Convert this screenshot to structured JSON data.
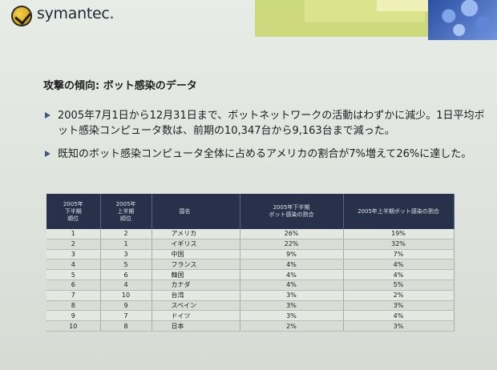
{
  "header": {
    "brand": "symantec."
  },
  "title": "攻撃の傾向:  ボット感染のデータ",
  "bullets": [
    "2005年7月1日から12月31日まで、ボットネットワークの活動はわずかに減少。1日平均ボット感染コンピュータ数は、前期の10,347台から9,163台まで減った。",
    "既知のボット感染コンピュータ全体に占めるアメリカの割合が7%増えて26%に達した。"
  ],
  "table": {
    "headers": {
      "rank_h2_line1": "2005年",
      "rank_h2_line2": "下半期",
      "rank_h2_line3": "順位",
      "rank_h1_line1": "2005年",
      "rank_h1_line2": "上半期",
      "rank_h1_line3": "順位",
      "country": "国名",
      "share_h2_line1": "2005年下半期",
      "share_h2_line2": "ボット感染の割合",
      "share_h1": "2005年上半期ボット感染の割合"
    },
    "rows": [
      {
        "rank_h2": "1",
        "rank_h1": "2",
        "country": "アメリカ",
        "share_h2": "26%",
        "share_h1": "19%"
      },
      {
        "rank_h2": "2",
        "rank_h1": "1",
        "country": "イギリス",
        "share_h2": "22%",
        "share_h1": "32%"
      },
      {
        "rank_h2": "3",
        "rank_h1": "3",
        "country": "中国",
        "share_h2": "9%",
        "share_h1": "7%"
      },
      {
        "rank_h2": "4",
        "rank_h1": "5",
        "country": "フランス",
        "share_h2": "4%",
        "share_h1": "4%"
      },
      {
        "rank_h2": "5",
        "rank_h1": "6",
        "country": "韓国",
        "share_h2": "4%",
        "share_h1": "4%"
      },
      {
        "rank_h2": "6",
        "rank_h1": "4",
        "country": "カナダ",
        "share_h2": "4%",
        "share_h1": "5%"
      },
      {
        "rank_h2": "7",
        "rank_h1": "10",
        "country": "台湾",
        "share_h2": "3%",
        "share_h1": "2%"
      },
      {
        "rank_h2": "8",
        "rank_h1": "9",
        "country": "スペイン",
        "share_h2": "3%",
        "share_h1": "3%"
      },
      {
        "rank_h2": "9",
        "rank_h1": "7",
        "country": "ドイツ",
        "share_h2": "3%",
        "share_h1": "4%"
      },
      {
        "rank_h2": "10",
        "rank_h1": "8",
        "country": "日本",
        "share_h2": "2%",
        "share_h1": "3%"
      }
    ]
  }
}
